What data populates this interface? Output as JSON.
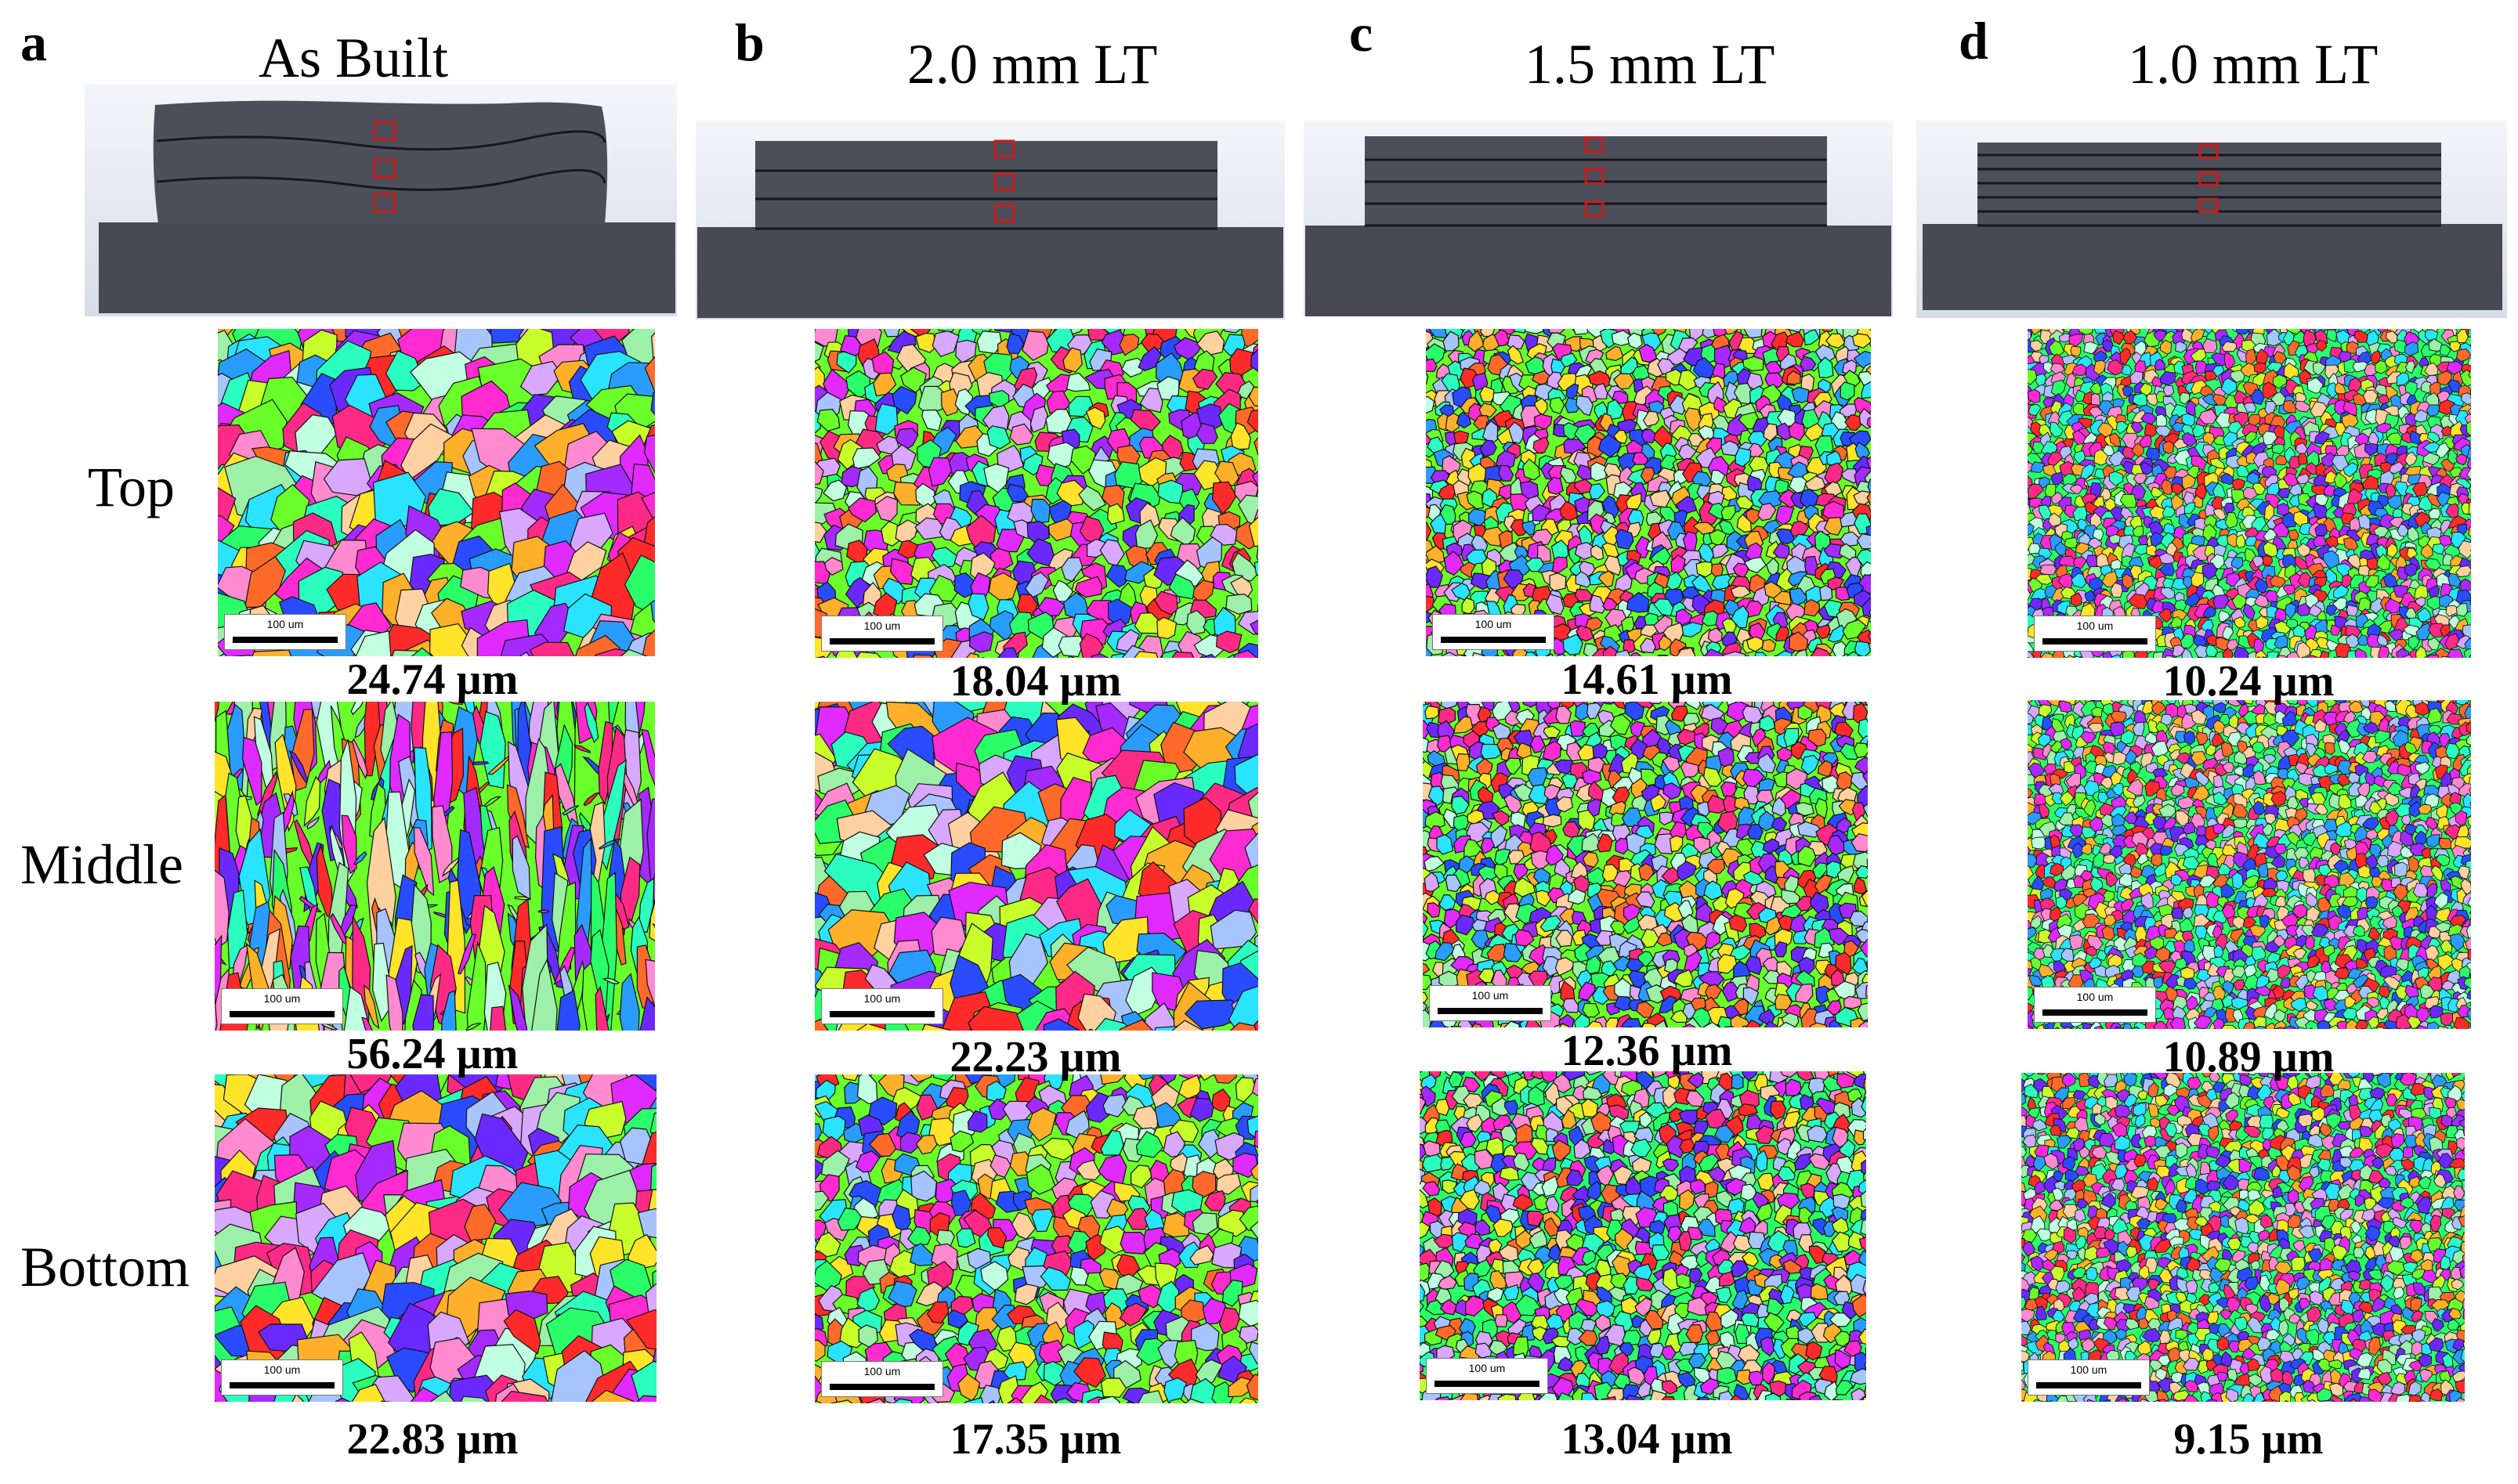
{
  "figure": {
    "columns": [
      {
        "letter": "a",
        "title": "As Built",
        "sketch_type": "wavy",
        "grain_sizes": [
          "24.74 µm",
          "56.24 µm",
          "22.83 µm"
        ]
      },
      {
        "letter": "b",
        "title": "2.0 mm LT",
        "sketch_type": "layers-3",
        "grain_sizes": [
          "18.04 µm",
          "22.23 µm",
          "17.35 µm"
        ]
      },
      {
        "letter": "c",
        "title": "1.5 mm LT",
        "sketch_type": "layers-4",
        "grain_sizes": [
          "14.61 µm",
          "12.36 µm",
          "13.04 µm"
        ]
      },
      {
        "letter": "d",
        "title": "1.0 mm LT",
        "sketch_type": "layers-6",
        "grain_sizes": [
          "10.24 µm",
          "10.89 µm",
          "9.15 µm"
        ]
      }
    ],
    "rows": [
      "Top",
      "Middle",
      "Bottom"
    ],
    "scale_bar_label": "100 um",
    "colors": {
      "substrate": "#474a54",
      "deposit": "#4c4f59",
      "layer_line": "#15171c",
      "sample_box": "#cc1b1b",
      "sketch_bg_top": "#f3f5f9",
      "sketch_bg_bottom": "#d7dde7"
    },
    "ebsd_palette": [
      "#ff2a2a",
      "#ff6a2a",
      "#ffb02a",
      "#ffe42a",
      "#c8ff2a",
      "#6aff2a",
      "#2aff6a",
      "#2affc0",
      "#2ae4ff",
      "#2a9cff",
      "#2a4cff",
      "#6a2aff",
      "#a42aff",
      "#e02aff",
      "#ff2ad0",
      "#ff2a86",
      "#ff8ad0",
      "#9cf0a8",
      "#a8c4ff",
      "#ffd0a0",
      "#c0ffe0",
      "#d8a8ff"
    ]
  }
}
